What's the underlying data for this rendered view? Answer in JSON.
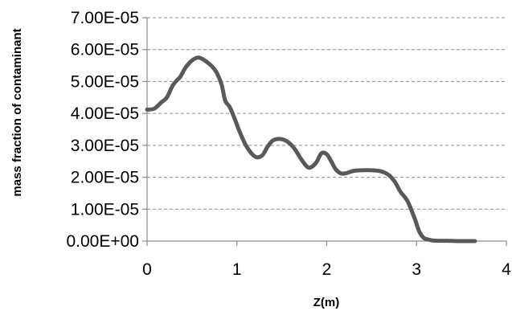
{
  "chart_data": {
    "type": "line",
    "title": "",
    "xlabel": "Z(m)",
    "ylabel": "mass fraction of contaminant",
    "xlim": [
      0,
      4
    ],
    "ylim": [
      0,
      7e-05
    ],
    "x_ticks": [
      "0",
      "1",
      "2",
      "3",
      "4"
    ],
    "y_ticks": [
      "0.00E+00",
      "1.00E-05",
      "2.00E-05",
      "3.00E-05",
      "4.00E-05",
      "5.00E-05",
      "6.00E-05",
      "7.00E-05"
    ],
    "grid": "horizontal dashed",
    "legend": "none",
    "series": [
      {
        "color": "#595959",
        "x": [
          0.0,
          0.08,
          0.16,
          0.22,
          0.28,
          0.32,
          0.37,
          0.42,
          0.47,
          0.52,
          0.57,
          0.62,
          0.68,
          0.73,
          0.78,
          0.83,
          0.87,
          0.92,
          0.98,
          1.02,
          1.1,
          1.2,
          1.28,
          1.34,
          1.4,
          1.48,
          1.56,
          1.64,
          1.72,
          1.8,
          1.88,
          1.94,
          2.0,
          2.05,
          2.1,
          2.16,
          2.22,
          2.3,
          2.4,
          2.5,
          2.58,
          2.64,
          2.7,
          2.76,
          2.82,
          2.9,
          2.98,
          3.03,
          3.08,
          3.13,
          3.18,
          3.25,
          3.35,
          3.45,
          3.55,
          3.65
        ],
        "y": [
          4.12e-05,
          4.15e-05,
          4.35e-05,
          4.5e-05,
          4.85e-05,
          5e-05,
          5.15e-05,
          5.4e-05,
          5.58e-05,
          5.7e-05,
          5.75e-05,
          5.7e-05,
          5.58e-05,
          5.45e-05,
          5.25e-05,
          4.9e-05,
          4.4e-05,
          4.2e-05,
          3.8e-05,
          3.5e-05,
          3e-05,
          2.65e-05,
          2.68e-05,
          2.95e-05,
          3.15e-05,
          3.2e-05,
          3.12e-05,
          2.9e-05,
          2.55e-05,
          2.3e-05,
          2.45e-05,
          2.75e-05,
          2.72e-05,
          2.5e-05,
          2.25e-05,
          2.12e-05,
          2.13e-05,
          2.2e-05,
          2.22e-05,
          2.22e-05,
          2.2e-05,
          2.15e-05,
          2.05e-05,
          1.85e-05,
          1.55e-05,
          1.25e-05,
          7e-06,
          3e-06,
          1e-06,
          5e-07,
          2e-07,
          1e-07,
          1e-07,
          0.0,
          0.0,
          0.0
        ]
      }
    ]
  }
}
